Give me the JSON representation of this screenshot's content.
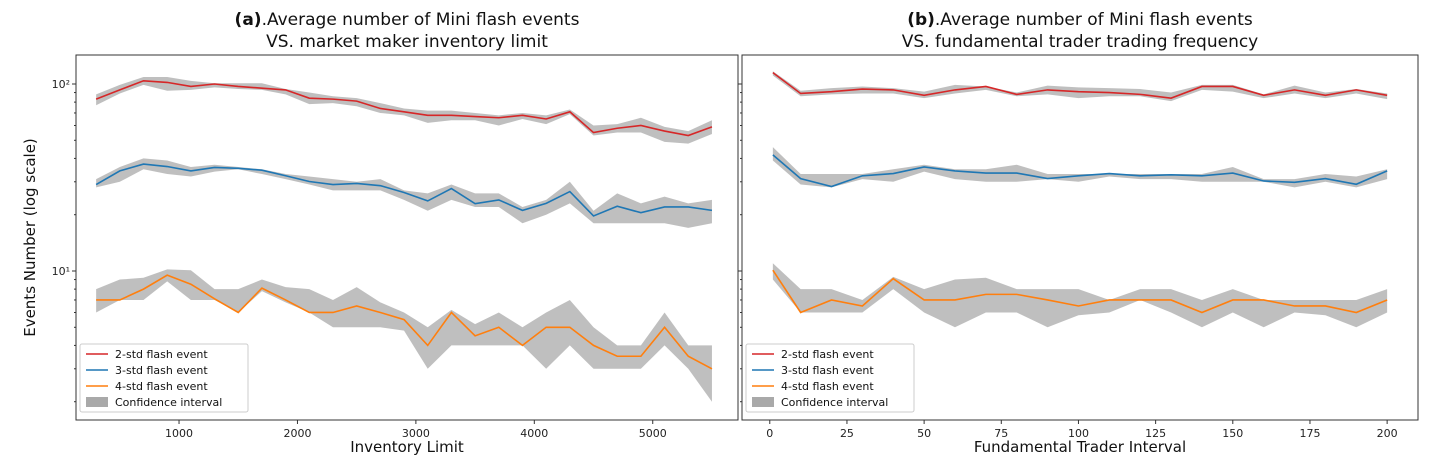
{
  "chart_data": [
    {
      "type": "line",
      "title_prefix": "(a)",
      "title_line1": ".Average number of Mini flash events",
      "title_line2": "VS. market maker inventory limit",
      "xlabel": "Inventory Limit",
      "ylabel": "Events Number (log scale)",
      "yscale": "log",
      "ylim": [
        1.6,
        143
      ],
      "xlim": [
        130,
        5720
      ],
      "xticks": [
        1000,
        2000,
        3000,
        4000,
        5000
      ],
      "yticks": [
        {
          "v": 100,
          "label": "10²"
        },
        {
          "v": 10,
          "label": "10¹"
        }
      ],
      "legend": "lower-left",
      "x": [
        300,
        500,
        700,
        900,
        1100,
        1300,
        1500,
        1700,
        1900,
        2100,
        2300,
        2500,
        2700,
        2900,
        3100,
        3300,
        3500,
        3700,
        3900,
        4100,
        4300,
        4500,
        4700,
        4900,
        5100,
        5300,
        5500
      ],
      "series": [
        {
          "name": "2-std flash event",
          "color": "#d62728",
          "values": [
            83,
            93,
            104,
            102,
            97,
            100,
            97,
            95,
            93,
            84,
            83,
            81,
            74,
            71,
            68,
            68,
            67,
            66,
            68,
            65,
            71,
            55,
            58,
            60,
            56,
            53,
            59
          ],
          "lower": [
            77,
            89,
            99,
            92,
            93,
            96,
            94,
            93,
            88,
            78,
            79,
            76,
            70,
            68,
            62,
            64,
            64,
            60,
            65,
            61,
            69,
            53,
            55,
            55,
            49,
            48,
            54
          ],
          "upper": [
            88,
            99,
            109,
            109,
            104,
            101,
            101,
            101,
            94,
            90,
            86,
            84,
            79,
            74,
            72,
            72,
            70,
            68,
            70,
            68,
            73,
            60,
            61,
            66,
            59,
            56,
            64
          ]
        },
        {
          "name": "3-std flash event",
          "color": "#1f77b4",
          "values": [
            29,
            34.3,
            37.3,
            36.2,
            34.3,
            35.8,
            35.4,
            34.6,
            32.3,
            30.1,
            29,
            29.4,
            28.6,
            26.3,
            23.7,
            27.6,
            22.9,
            24,
            21.1,
            23,
            26.6,
            19.7,
            22.2,
            20.5,
            22,
            22,
            21.1
          ],
          "lower": [
            28,
            30,
            35,
            33,
            32,
            34,
            35,
            33,
            31,
            29,
            27,
            27,
            27,
            24,
            21,
            24,
            22,
            22,
            18,
            20,
            23,
            18,
            18,
            18,
            18,
            17,
            18
          ],
          "upper": [
            31,
            36,
            40,
            39,
            36,
            37,
            36,
            35,
            33,
            32,
            31,
            30,
            31,
            27,
            26,
            29,
            26,
            26,
            22,
            24,
            30,
            21,
            26,
            23,
            25,
            23,
            24
          ]
        },
        {
          "name": "4-std flash event",
          "color": "#ff7f0e",
          "values": [
            7,
            7,
            8,
            9.5,
            8.5,
            7.1,
            6,
            8.1,
            7,
            6,
            6,
            6.5,
            6,
            5.5,
            4,
            6,
            4.5,
            5,
            4,
            5,
            5,
            4,
            3.5,
            3.5,
            5,
            3.5,
            3
          ],
          "lower": [
            6,
            7,
            7,
            8.8,
            7,
            7,
            6,
            7.8,
            6.8,
            6,
            5,
            5,
            5,
            4.8,
            3,
            4,
            4,
            4,
            4,
            3,
            4,
            3,
            3,
            3,
            4,
            3,
            2
          ],
          "upper": [
            8,
            9,
            9.2,
            10.2,
            10.1,
            8,
            8,
            9,
            8.2,
            8,
            7,
            8.2,
            6.8,
            6,
            5,
            6.2,
            5.2,
            6,
            5,
            6,
            7,
            5,
            4,
            4,
            6,
            4,
            4
          ]
        }
      ],
      "band_label": "Confidence interval",
      "band_color": "#a9a9a9"
    },
    {
      "type": "line",
      "title_prefix": "(b)",
      "title_line1": ".Average number of Mini flash events",
      "title_line2": "VS. fundamental trader trading frequency",
      "xlabel": "Fundamental Trader Interval",
      "yscale": "log",
      "ylim": [
        1.6,
        143
      ],
      "xlim": [
        -9,
        210
      ],
      "xticks": [
        0,
        25,
        50,
        75,
        100,
        125,
        150,
        175,
        200
      ],
      "yticks": [
        {
          "v": 100,
          "label": ""
        },
        {
          "v": 10,
          "label": ""
        }
      ],
      "legend": "lower-left",
      "x": [
        1,
        10,
        20,
        30,
        40,
        50,
        60,
        70,
        80,
        90,
        100,
        110,
        120,
        130,
        140,
        150,
        160,
        170,
        180,
        190,
        200
      ],
      "series": [
        {
          "name": "2-std flash event",
          "color": "#d62728",
          "values": [
            115,
            89,
            91,
            94,
            93,
            87,
            93,
            97,
            88,
            93,
            91,
            90,
            88,
            84,
            97,
            97,
            87,
            93,
            87,
            93,
            87
          ],
          "lower": [
            111,
            86,
            88,
            89,
            89,
            84,
            89,
            93,
            86,
            88,
            84,
            86,
            86,
            81,
            93,
            91,
            84,
            89,
            84,
            89,
            83
          ],
          "upper": [
            117,
            92,
            95,
            97,
            95,
            91,
            99,
            97,
            90,
            98,
            96,
            95,
            94,
            90,
            99,
            99,
            88,
            98,
            90,
            94,
            89
          ]
        },
        {
          "name": "3-std flash event",
          "color": "#1f77b4",
          "values": [
            41.8,
            31.2,
            28.3,
            32.3,
            33.2,
            36,
            34.3,
            33.4,
            33.4,
            31.2,
            32.3,
            33.2,
            32.3,
            32.7,
            32.3,
            33.4,
            30.3,
            29.8,
            31.2,
            29.1,
            34.3
          ],
          "lower": [
            39,
            29,
            28,
            31,
            30,
            34,
            31,
            30,
            30,
            31,
            30,
            32,
            31,
            31,
            30,
            30,
            30,
            28,
            30,
            28,
            31
          ],
          "upper": [
            46,
            33,
            33,
            33,
            35,
            37,
            35,
            35,
            37,
            33,
            33,
            33,
            33,
            33,
            33,
            36,
            31,
            31,
            33,
            32,
            35
          ]
        },
        {
          "name": "4-std flash event",
          "color": "#ff7f0e",
          "values": [
            10.1,
            6,
            7,
            6.5,
            9.1,
            7,
            7,
            7.5,
            7.5,
            7,
            6.5,
            7,
            7,
            7,
            6,
            7,
            7,
            6.5,
            6.5,
            6,
            7
          ],
          "lower": [
            9,
            6,
            6,
            6,
            8,
            6,
            5,
            6,
            6,
            5,
            5.8,
            6,
            7,
            6,
            5,
            6,
            5,
            6,
            5.8,
            5,
            6
          ],
          "upper": [
            11,
            8,
            8,
            7,
            9.3,
            8,
            9,
            9.2,
            8,
            8,
            8,
            7,
            8,
            8,
            7,
            8,
            7,
            7,
            7,
            7,
            8
          ]
        }
      ],
      "band_label": "Confidence interval",
      "band_color": "#a9a9a9"
    }
  ]
}
